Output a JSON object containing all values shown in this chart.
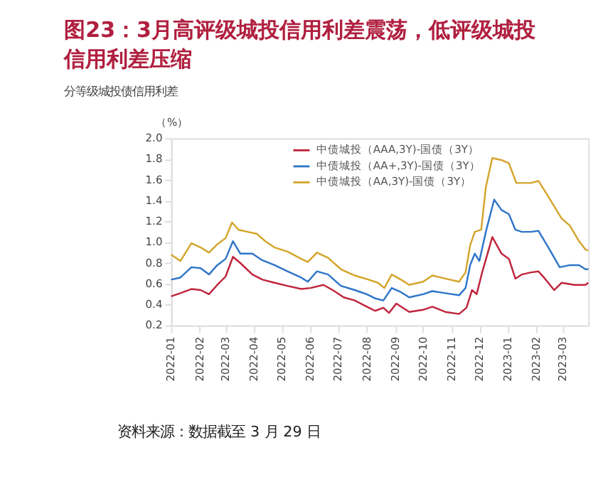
{
  "chart_data": {
    "type": "line",
    "title": "图23：3月高评级城投信用利差震荡，低评级城投信用利差压缩",
    "subtitle": "分等级城投债信用利差",
    "ylabel": "（%）",
    "annotations": [
      "资料来源：数据截至 3 月 29 日"
    ],
    "xlim": [
      "2022-01-01",
      "2023-03-29"
    ],
    "xticks": [
      "2022-01",
      "2022-02",
      "2022-03",
      "2022-04",
      "2022-05",
      "2022-06",
      "2022-07",
      "2022-08",
      "2022-09",
      "2022-10",
      "2022-11",
      "2022-12",
      "2023-01",
      "2023-02",
      "2023-03"
    ],
    "ylim": [
      0.2,
      2.0
    ],
    "yticks": [
      0.2,
      0.4,
      0.6,
      0.8,
      {
        "value": 1,
        "label": "1.0"
      },
      1.2,
      1.4,
      1.6,
      1.8,
      {
        "value": 2,
        "label": "2.0"
      }
    ],
    "grid": false,
    "legend": "top",
    "marker": "none",
    "line_style": "solid",
    "series": [
      {
        "name": "中债城投（AAA,3Y)-国债（3Y）",
        "color": "#c0243b",
        "x": [
          "2022-01-01",
          "2022-01-11",
          "2022-01-23",
          "2022-02-02",
          "2022-02-11",
          "2022-02-20",
          "2022-03-01",
          "2022-03-09",
          "2022-03-17",
          "2022-03-30",
          "2022-04-10",
          "2022-04-23",
          "2022-05-07",
          "2022-05-22",
          "2022-06-01",
          "2022-06-15",
          "2022-06-25",
          "2022-07-07",
          "2022-07-19",
          "2022-08-01",
          "2022-08-10",
          "2022-08-19",
          "2022-08-25",
          "2022-09-02",
          "2022-09-16",
          "2022-10-01",
          "2022-10-11",
          "2022-10-25",
          "2022-11-09",
          "2022-11-17",
          "2022-11-23",
          "2022-11-28",
          "2022-12-04",
          "2022-12-15",
          "2022-12-25",
          "2023-01-02",
          "2023-01-09",
          "2023-01-16",
          "2023-01-26",
          "2023-02-03",
          "2023-02-10",
          "2023-02-20",
          "2023-02-28",
          "2023-03-14",
          "2023-03-26",
          "2023-03-29"
        ],
        "values": [
          0.48,
          0.51,
          0.55,
          0.54,
          0.5,
          0.59,
          0.67,
          0.86,
          0.8,
          0.69,
          0.64,
          0.61,
          0.58,
          0.55,
          0.56,
          0.59,
          0.54,
          0.47,
          0.44,
          0.38,
          0.34,
          0.37,
          0.32,
          0.41,
          0.33,
          0.35,
          0.38,
          0.33,
          0.31,
          0.37,
          0.54,
          0.5,
          0.71,
          1.05,
          0.89,
          0.84,
          0.65,
          0.69,
          0.71,
          0.72,
          0.65,
          0.54,
          0.61,
          0.59,
          0.59,
          0.61
        ]
      },
      {
        "name": "中债城投（AA+,3Y)-国债（3Y）",
        "color": "#2e75c8",
        "x": [
          "2022-01-01",
          "2022-01-11",
          "2022-01-23",
          "2022-02-02",
          "2022-02-11",
          "2022-02-20",
          "2022-03-01",
          "2022-03-09",
          "2022-03-17",
          "2022-03-30",
          "2022-04-09",
          "2022-04-23",
          "2022-05-07",
          "2022-05-22",
          "2022-05-29",
          "2022-06-08",
          "2022-06-20",
          "2022-07-04",
          "2022-07-19",
          "2022-08-01",
          "2022-08-10",
          "2022-08-19",
          "2022-08-28",
          "2022-09-07",
          "2022-09-16",
          "2022-10-01",
          "2022-10-11",
          "2022-10-25",
          "2022-11-09",
          "2022-11-16",
          "2022-11-21",
          "2022-11-26",
          "2022-12-01",
          "2022-12-08",
          "2022-12-17",
          "2022-12-25",
          "2023-01-02",
          "2023-01-09",
          "2023-01-16",
          "2023-01-26",
          "2023-02-03",
          "2023-02-15",
          "2023-02-26",
          "2023-03-09",
          "2023-03-19",
          "2023-03-26",
          "2023-03-29"
        ],
        "values": [
          0.64,
          0.66,
          0.76,
          0.75,
          0.69,
          0.78,
          0.84,
          1.01,
          0.89,
          0.89,
          0.83,
          0.78,
          0.72,
          0.66,
          0.62,
          0.72,
          0.69,
          0.58,
          0.54,
          0.5,
          0.46,
          0.44,
          0.56,
          0.52,
          0.47,
          0.5,
          0.53,
          0.51,
          0.49,
          0.56,
          0.78,
          0.89,
          0.82,
          1.1,
          1.41,
          1.31,
          1.27,
          1.12,
          1.1,
          1.1,
          1.11,
          0.93,
          0.76,
          0.78,
          0.78,
          0.74,
          0.74
        ]
      },
      {
        "name": "中债城投（AA,3Y)-国债（3Y）",
        "color": "#d4a52a",
        "x": [
          "2022-01-01",
          "2022-01-11",
          "2022-01-23",
          "2022-02-02",
          "2022-02-11",
          "2022-02-20",
          "2022-03-01",
          "2022-03-08",
          "2022-03-15",
          "2022-03-25",
          "2022-04-04",
          "2022-04-13",
          "2022-04-23",
          "2022-05-07",
          "2022-05-22",
          "2022-05-29",
          "2022-06-08",
          "2022-06-20",
          "2022-07-04",
          "2022-07-19",
          "2022-08-03",
          "2022-08-13",
          "2022-08-20",
          "2022-08-28",
          "2022-09-07",
          "2022-09-16",
          "2022-10-01",
          "2022-10-11",
          "2022-10-25",
          "2022-11-09",
          "2022-11-16",
          "2022-11-21",
          "2022-11-26",
          "2022-12-03",
          "2022-12-08",
          "2022-12-15",
          "2022-12-25",
          "2023-01-02",
          "2023-01-10",
          "2023-01-26",
          "2023-02-03",
          "2023-02-15",
          "2023-02-28",
          "2023-03-09",
          "2023-03-19",
          "2023-03-26",
          "2023-03-29"
        ],
        "values": [
          0.88,
          0.82,
          0.99,
          0.95,
          0.9,
          0.98,
          1.04,
          1.19,
          1.12,
          1.1,
          1.08,
          1.01,
          0.95,
          0.91,
          0.84,
          0.81,
          0.9,
          0.85,
          0.74,
          0.68,
          0.64,
          0.61,
          0.56,
          0.69,
          0.64,
          0.59,
          0.62,
          0.68,
          0.65,
          0.62,
          0.71,
          0.97,
          1.1,
          1.12,
          1.53,
          1.81,
          1.79,
          1.76,
          1.57,
          1.57,
          1.59,
          1.42,
          1.23,
          1.16,
          1.01,
          0.93,
          0.92
        ]
      }
    ]
  }
}
